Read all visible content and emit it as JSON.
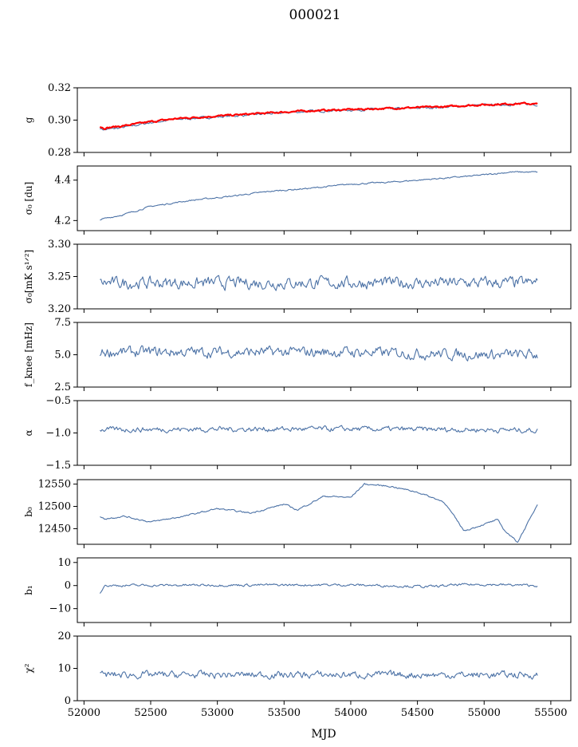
{
  "figure": {
    "title": "000021",
    "xlabel": "MJD"
  },
  "chart_data": {
    "type": "line",
    "x_range": [
      51950,
      55650
    ],
    "x_ticks": [
      52000,
      52500,
      53000,
      53500,
      54000,
      54500,
      55000,
      55500
    ],
    "x_tick_labels": [
      "52000",
      "52500",
      "53000",
      "53500",
      "54000",
      "54500",
      "55000",
      "55500"
    ],
    "panels": [
      {
        "id": "g",
        "ylabel": "g",
        "ylim": [
          0.28,
          0.32
        ],
        "yticks": [
          0.28,
          0.3,
          0.32
        ],
        "ytick_labels": [
          "0.28",
          "0.30",
          "0.32"
        ],
        "series": [
          {
            "color": "#4c72a6",
            "x": [
              52120,
              52150,
              52300,
              52500,
              52700,
              52900,
              53100,
              53300,
              53500,
              53700,
              53900,
              54100,
              54300,
              54500,
              54700,
              54900,
              55100,
              55300,
              55400
            ],
            "y": [
              0.295,
              0.294,
              0.2955,
              0.2985,
              0.3005,
              0.3015,
              0.3025,
              0.3035,
              0.3045,
              0.3055,
              0.306,
              0.3065,
              0.307,
              0.3075,
              0.308,
              0.309,
              0.3095,
              0.31,
              0.3095
            ],
            "noise": 0.0008
          },
          {
            "color": "#ff0000",
            "x": [
              52120,
              52150,
              52300,
              52500,
              52700,
              52900,
              53100,
              53300,
              53500,
              53700,
              53900,
              54100,
              54300,
              54500,
              54700,
              54900,
              55100,
              55300,
              55400
            ],
            "y": [
              0.296,
              0.295,
              0.2965,
              0.299,
              0.301,
              0.302,
              0.303,
              0.304,
              0.305,
              0.3058,
              0.3063,
              0.3068,
              0.3073,
              0.3078,
              0.3083,
              0.3092,
              0.3098,
              0.3103,
              0.3098
            ],
            "noise": 0.0006
          }
        ]
      },
      {
        "id": "sigma0-du",
        "ylabel": "σ₀ [du]",
        "ylim": [
          4.15,
          4.47
        ],
        "yticks": [
          4.2,
          4.4
        ],
        "ytick_labels": [
          "4.2",
          "4.4"
        ],
        "series": [
          {
            "color": "#4c72a6",
            "x": [
              52120,
              52300,
              52500,
              52800,
              53100,
              53400,
              53700,
              54000,
              54300,
              54600,
              54900,
              55200,
              55400
            ],
            "y": [
              4.205,
              4.23,
              4.27,
              4.3,
              4.32,
              4.345,
              4.36,
              4.38,
              4.39,
              4.405,
              4.42,
              4.44,
              4.44
            ],
            "noise": 0.004
          }
        ]
      },
      {
        "id": "sigma0-mk",
        "ylabel": "σ₀[mK s¹ᐟ²]",
        "ylim": [
          3.2,
          3.3
        ],
        "yticks": [
          3.2,
          3.25,
          3.3
        ],
        "ytick_labels": [
          "3.20",
          "3.25",
          "3.30"
        ],
        "series": [
          {
            "color": "#4c72a6",
            "x": [
              52120,
              53000,
              54000,
              55000,
              55400
            ],
            "y": [
              3.24,
              3.24,
              3.24,
              3.24,
              3.24
            ],
            "noise": 0.01
          }
        ]
      },
      {
        "id": "fknee",
        "ylabel": "f_knee [mHz]",
        "ylim": [
          2.5,
          7.5
        ],
        "yticks": [
          2.5,
          5.0,
          7.5
        ],
        "ytick_labels": [
          "2.5",
          "5.0",
          "7.5"
        ],
        "series": [
          {
            "color": "#4c72a6",
            "x": [
              52120,
              53000,
              54000,
              55000,
              55400
            ],
            "y": [
              5.2,
              5.2,
              5.2,
              5.0,
              5.0
            ],
            "noise": 0.45
          }
        ]
      },
      {
        "id": "alpha",
        "ylabel": "α",
        "ylim": [
          -1.5,
          -0.5
        ],
        "yticks": [
          -1.5,
          -1.0,
          -0.5
        ],
        "ytick_labels": [
          "−1.5",
          "−1.0",
          "−0.5"
        ],
        "series": [
          {
            "color": "#4c72a6",
            "x": [
              52120,
              53000,
              54000,
              55000,
              55400
            ],
            "y": [
              -0.95,
              -0.94,
              -0.94,
              -0.95,
              -0.96
            ],
            "noise": 0.045
          }
        ]
      },
      {
        "id": "b0",
        "ylabel": "b₀",
        "ylim": [
          12415,
          12560
        ],
        "yticks": [
          12450,
          12500,
          12550
        ],
        "ytick_labels": [
          "12450",
          "12500",
          "12550"
        ],
        "series": [
          {
            "color": "#4c72a6",
            "x": [
              52120,
              52150,
              52300,
              52500,
              52750,
              53000,
              53250,
              53500,
              53600,
              53800,
              54000,
              54100,
              54300,
              54500,
              54700,
              54850,
              55000,
              55100,
              55150,
              55250,
              55350,
              55400
            ],
            "y": [
              12478,
              12472,
              12478,
              12465,
              12478,
              12495,
              12485,
              12505,
              12492,
              12523,
              12520,
              12550,
              12545,
              12532,
              12510,
              12445,
              12460,
              12470,
              12447,
              12420,
              12475,
              12505
            ],
            "noise": 2
          }
        ]
      },
      {
        "id": "b1",
        "ylabel": "b₁",
        "ylim": [
          -16,
          12
        ],
        "yticks": [
          -10,
          0,
          10
        ],
        "ytick_labels": [
          "−10",
          "0",
          "10"
        ],
        "series": [
          {
            "color": "#4c72a6",
            "x": [
              52120,
              52150,
              53000,
              54000,
              54600,
              54800,
              55000,
              55400
            ],
            "y": [
              -3,
              0,
              0.2,
              0.3,
              -0.5,
              0.3,
              0.5,
              0
            ],
            "noise": 0.6
          }
        ]
      },
      {
        "id": "chi2",
        "ylabel": "χ²",
        "ylim": [
          0,
          20
        ],
        "yticks": [
          0,
          10,
          20
        ],
        "ytick_labels": [
          "0",
          "10",
          "20"
        ],
        "series": [
          {
            "color": "#4c72a6",
            "x": [
              52120,
              53000,
              54000,
              55000,
              55400
            ],
            "y": [
              8,
              8,
              8,
              8,
              8
            ],
            "noise": 1.2
          }
        ]
      }
    ]
  }
}
